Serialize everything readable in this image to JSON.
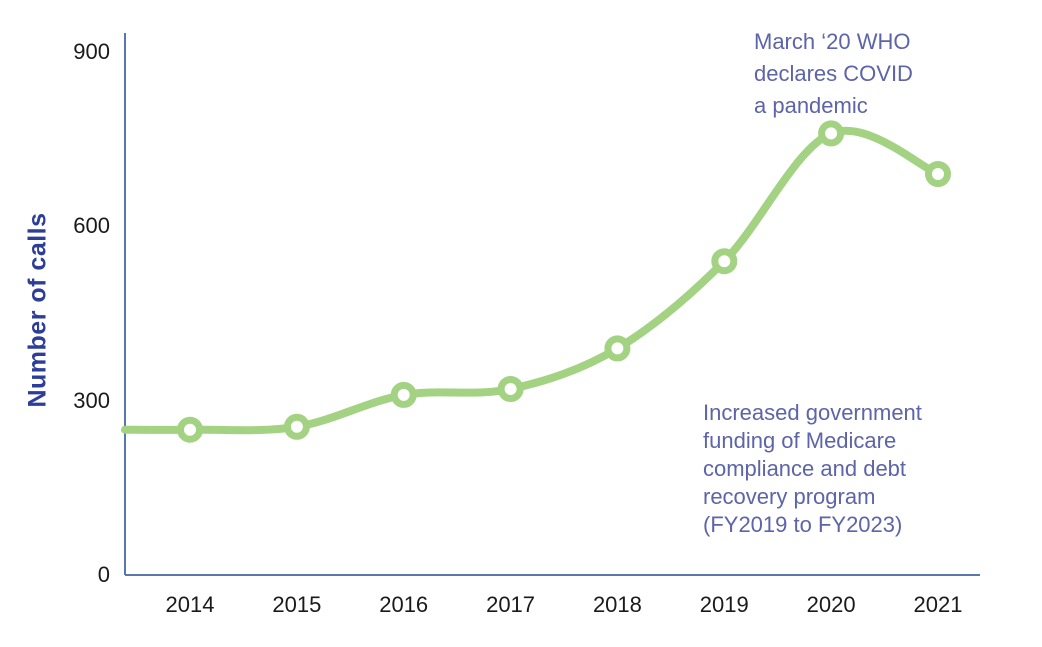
{
  "chart_data": {
    "type": "line",
    "title": "",
    "categories": [
      "2014",
      "2015",
      "2016",
      "2017",
      "2018",
      "2019",
      "2020",
      "2021"
    ],
    "values": [
      250,
      255,
      310,
      320,
      390,
      540,
      760,
      690
    ],
    "xlabel": "",
    "ylabel": "Number of calls",
    "ylim": [
      0,
      900
    ],
    "y_ticks": [
      900,
      600,
      300,
      0
    ],
    "grid": false,
    "legend": "none",
    "line_color": "#a3d283",
    "marker_style": "open-circle",
    "marker_fill": "#ffffff",
    "axis_color": "#5878ab",
    "tick_color": "#1a1a1a",
    "ylabel_color": "#2d3e99",
    "annotations": [
      {
        "id": "covid",
        "text": "March ‘20 WHO\ndeclares COVID\na pandemic",
        "color": "#5d64a7"
      },
      {
        "id": "funding",
        "text": "Increased government\nfunding of Medicare\ncompliance and debt\nrecovery program\n(FY2019 to FY2023)",
        "color": "#5d64a7"
      }
    ]
  }
}
